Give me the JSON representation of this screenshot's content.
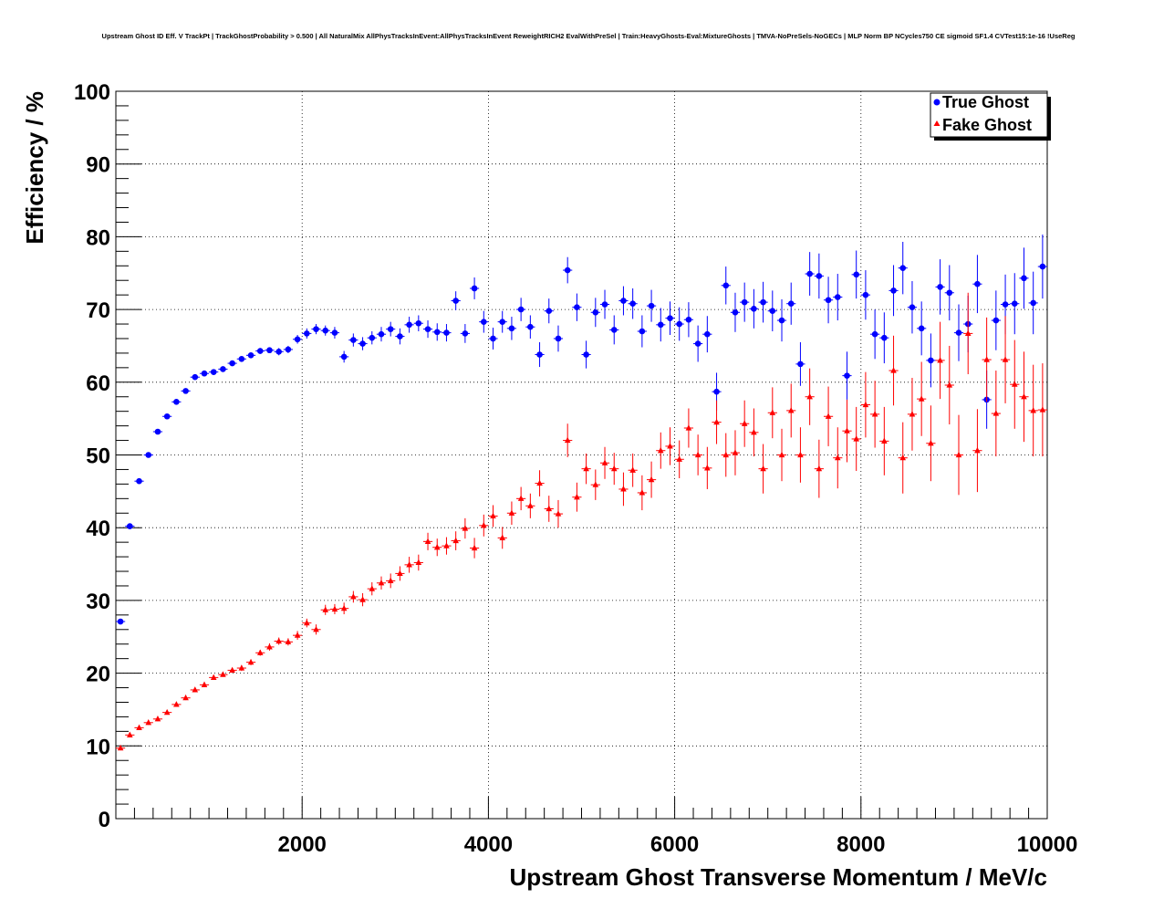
{
  "chart_data": {
    "type": "scatter",
    "title": "Upstream Ghost ID Eff. V TrackPt | TrackGhostProbability > 0.500 | All NaturalMix AllPhysTracksInEvent:AllPhysTracksInEvent ReweightRICH2 EvalWithPreSel | Train:HeavyGhosts-Eval:MixtureGhosts | TMVA-NoPreSels-NoGECs | MLP Norm BP NCycles750 CE sigmoid SF1.4 CVTest15:1e-16 !UseReg",
    "xlabel": "Upstream Ghost Transverse Momentum / MeV/c",
    "ylabel": "Efficiency / %",
    "xlim": [
      0,
      10000
    ],
    "ylim": [
      0,
      100
    ],
    "x_ticks": [
      2000,
      4000,
      6000,
      8000,
      10000
    ],
    "y_ticks": [
      0,
      10,
      20,
      30,
      40,
      50,
      60,
      70,
      80,
      90,
      100
    ],
    "grid": true,
    "legend_position": "top-right",
    "x_bin_width": 100,
    "series": [
      {
        "name": "True Ghost",
        "color": "#0000ff",
        "marker": "circle",
        "x": [
          50,
          150,
          250,
          350,
          450,
          550,
          650,
          750,
          850,
          950,
          1050,
          1150,
          1250,
          1350,
          1450,
          1550,
          1650,
          1750,
          1850,
          1950,
          2050,
          2150,
          2250,
          2350,
          2450,
          2550,
          2650,
          2750,
          2850,
          2950,
          3050,
          3150,
          3250,
          3350,
          3450,
          3550,
          3650,
          3750,
          3850,
          3950,
          4050,
          4150,
          4250,
          4350,
          4450,
          4550,
          4650,
          4750,
          4850,
          4950,
          5050,
          5150,
          5250,
          5350,
          5450,
          5550,
          5650,
          5750,
          5850,
          5950,
          6050,
          6150,
          6250,
          6350,
          6450,
          6550,
          6650,
          6750,
          6850,
          6950,
          7050,
          7150,
          7250,
          7350,
          7450,
          7550,
          7650,
          7750,
          7850,
          7950,
          8050,
          8150,
          8250,
          8350,
          8450,
          8550,
          8650,
          8750,
          8850,
          8950,
          9050,
          9150,
          9250,
          9350,
          9450,
          9550,
          9650,
          9750,
          9850,
          9950
        ],
        "y": [
          27.1,
          40.2,
          46.4,
          50.0,
          53.2,
          55.3,
          57.3,
          58.8,
          60.7,
          61.2,
          61.4,
          61.8,
          62.6,
          63.2,
          63.7,
          64.3,
          64.4,
          64.2,
          64.5,
          65.9,
          66.7,
          67.3,
          67.1,
          66.8,
          63.5,
          65.8,
          65.3,
          66.1,
          66.6,
          67.3,
          66.3,
          67.9,
          68.1,
          67.3,
          66.9,
          66.8,
          71.2,
          66.7,
          72.9,
          68.3,
          66.0,
          68.3,
          67.4,
          70.0,
          67.6,
          63.8,
          69.8,
          66.0,
          75.4,
          70.3,
          63.8,
          69.6,
          70.7,
          67.2,
          71.2,
          70.8,
          67.0,
          70.5,
          67.9,
          68.8,
          68.0,
          68.6,
          65.3,
          66.6,
          58.7,
          73.3,
          69.6,
          71.0,
          70.1,
          71.0,
          69.8,
          68.5,
          70.8,
          62.5,
          74.9,
          74.6,
          71.3,
          71.7,
          60.9,
          74.8,
          72.0,
          66.6,
          66.1,
          72.6,
          75.7,
          70.3,
          67.4,
          63.0,
          73.1,
          72.3,
          66.8,
          68.0,
          73.5,
          57.6,
          68.5,
          70.7,
          70.8,
          74.3,
          70.9,
          75.9
        ],
        "yerr": [
          0.3,
          0.3,
          0.3,
          0.3,
          0.3,
          0.3,
          0.3,
          0.3,
          0.3,
          0.3,
          0.3,
          0.3,
          0.3,
          0.3,
          0.3,
          0.4,
          0.4,
          0.5,
          0.5,
          0.6,
          0.7,
          0.7,
          0.7,
          0.8,
          0.8,
          0.9,
          0.9,
          0.9,
          1.0,
          1.0,
          1.1,
          1.1,
          1.1,
          1.2,
          1.2,
          1.2,
          1.3,
          1.3,
          1.5,
          1.5,
          1.5,
          1.5,
          1.6,
          1.6,
          1.6,
          1.7,
          1.7,
          1.8,
          1.8,
          1.9,
          1.9,
          2.0,
          2.0,
          2.0,
          2.0,
          2.1,
          2.2,
          2.2,
          2.3,
          2.3,
          2.3,
          2.4,
          2.5,
          2.5,
          2.6,
          2.6,
          2.7,
          2.7,
          2.7,
          2.8,
          2.8,
          2.9,
          2.9,
          3.0,
          3.0,
          3.1,
          3.2,
          3.2,
          3.3,
          3.3,
          3.4,
          3.4,
          3.5,
          3.5,
          3.6,
          3.6,
          3.7,
          3.7,
          3.8,
          3.8,
          3.9,
          3.9,
          4.0,
          4.0,
          4.1,
          4.1,
          4.2,
          4.2,
          4.3,
          4.4
        ]
      },
      {
        "name": "Fake Ghost",
        "color": "#ff0000",
        "marker": "triangle",
        "x": [
          50,
          150,
          250,
          350,
          450,
          550,
          650,
          750,
          850,
          950,
          1050,
          1150,
          1250,
          1350,
          1450,
          1550,
          1650,
          1750,
          1850,
          1950,
          2050,
          2150,
          2250,
          2350,
          2450,
          2550,
          2650,
          2750,
          2850,
          2950,
          3050,
          3150,
          3250,
          3350,
          3450,
          3550,
          3650,
          3750,
          3850,
          3950,
          4050,
          4150,
          4250,
          4350,
          4450,
          4550,
          4650,
          4750,
          4850,
          4950,
          5050,
          5150,
          5250,
          5350,
          5450,
          5550,
          5650,
          5750,
          5850,
          5950,
          6050,
          6150,
          6250,
          6350,
          6450,
          6550,
          6650,
          6750,
          6850,
          6950,
          7050,
          7150,
          7250,
          7350,
          7450,
          7550,
          7650,
          7750,
          7850,
          7950,
          8050,
          8150,
          8250,
          8350,
          8450,
          8550,
          8650,
          8750,
          8850,
          8950,
          9050,
          9150,
          9250,
          9350,
          9450,
          9550,
          9650,
          9750,
          9850,
          9950
        ],
        "y": [
          9.7,
          11.5,
          12.5,
          13.2,
          13.7,
          14.6,
          15.7,
          16.6,
          17.7,
          18.4,
          19.4,
          19.8,
          20.4,
          20.7,
          21.5,
          22.8,
          23.6,
          24.4,
          24.3,
          25.2,
          26.9,
          26.0,
          28.7,
          28.8,
          28.9,
          30.5,
          30.1,
          31.6,
          32.4,
          32.7,
          33.7,
          34.9,
          35.2,
          38.1,
          37.3,
          37.5,
          38.2,
          39.9,
          37.2,
          40.3,
          41.6,
          38.6,
          42.0,
          44.0,
          43.0,
          46.1,
          42.6,
          41.9,
          52.0,
          44.2,
          48.1,
          45.9,
          48.9,
          48.1,
          45.3,
          47.9,
          44.8,
          46.6,
          50.6,
          51.2,
          49.4,
          53.7,
          50.0,
          48.2,
          54.5,
          50.0,
          50.3,
          54.3,
          53.1,
          48.1,
          55.8,
          50.0,
          56.1,
          50.0,
          58.0,
          48.1,
          55.3,
          49.6,
          53.3,
          52.2,
          56.9,
          55.6,
          51.9,
          61.6,
          49.6,
          55.6,
          57.7,
          51.6,
          63.0,
          59.6,
          50.0,
          66.7,
          50.6,
          63.1,
          55.7,
          63.1,
          59.7,
          58.0,
          56.1,
          56.2
        ],
        "yerr": [
          0.3,
          0.3,
          0.3,
          0.3,
          0.3,
          0.3,
          0.3,
          0.3,
          0.3,
          0.3,
          0.3,
          0.3,
          0.3,
          0.4,
          0.4,
          0.4,
          0.5,
          0.5,
          0.5,
          0.6,
          0.6,
          0.7,
          0.7,
          0.7,
          0.8,
          0.8,
          0.9,
          0.9,
          0.9,
          1.0,
          1.0,
          1.1,
          1.1,
          1.2,
          1.2,
          1.2,
          1.3,
          1.4,
          1.4,
          1.5,
          1.5,
          1.5,
          1.6,
          1.6,
          1.7,
          1.8,
          1.8,
          1.9,
          2.3,
          2.0,
          2.1,
          2.1,
          2.2,
          2.2,
          2.3,
          2.3,
          2.4,
          2.5,
          2.5,
          2.6,
          2.6,
          2.7,
          2.8,
          2.9,
          3.0,
          3.0,
          3.1,
          3.2,
          3.3,
          3.4,
          3.5,
          3.6,
          3.7,
          3.8,
          3.9,
          4.0,
          4.1,
          4.2,
          4.3,
          4.4,
          4.5,
          4.6,
          4.7,
          4.8,
          4.9,
          5.0,
          5.1,
          5.2,
          5.3,
          5.4,
          5.5,
          5.6,
          5.7,
          5.8,
          5.9,
          6.0,
          6.1,
          6.2,
          6.3,
          6.4
        ]
      }
    ]
  }
}
